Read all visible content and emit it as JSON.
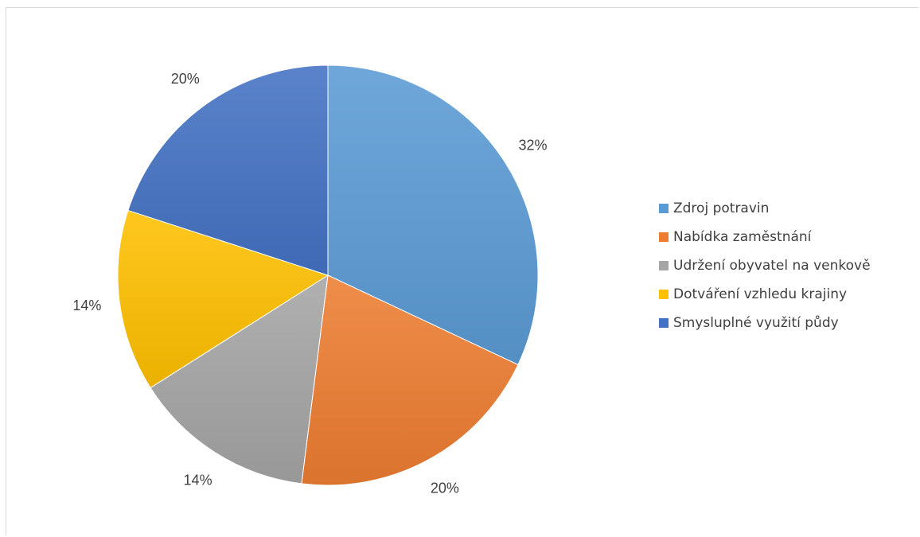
{
  "chart_data": {
    "type": "pie",
    "categories": [
      "Zdroj potravin",
      "Nabídka zaměstnání",
      "Udržení obyvatel na venkově",
      "Dotváření vzhledu krajiny",
      "Smysluplné využití půdy"
    ],
    "values": [
      32,
      20,
      14,
      14,
      20
    ],
    "value_labels": [
      "32%",
      "20%",
      "14%",
      "14%",
      "20%"
    ],
    "colors": [
      "#5b9bd5",
      "#ed7d31",
      "#a5a5a5",
      "#ffc000",
      "#4472c4"
    ],
    "legend_position": "right",
    "start_angle": "12 o'clock",
    "direction": "clockwise"
  }
}
